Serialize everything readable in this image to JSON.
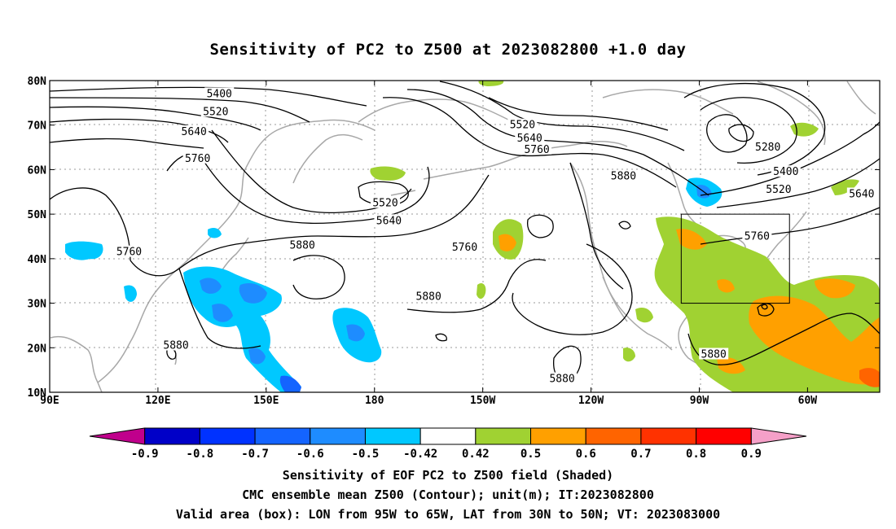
{
  "title": "Sensitivity of PC2 to Z500 at 2023082800 +1.0 day",
  "lon_ticks": [
    {
      "lon": 90,
      "label": "90E"
    },
    {
      "lon": 120,
      "label": "120E"
    },
    {
      "lon": 150,
      "label": "150E"
    },
    {
      "lon": 180,
      "label": "180"
    },
    {
      "lon": 210,
      "label": "150W"
    },
    {
      "lon": 240,
      "label": "120W"
    },
    {
      "lon": 270,
      "label": "90W"
    },
    {
      "lon": 300,
      "label": "60W"
    }
  ],
  "lat_ticks": [
    {
      "lat": 10,
      "label": "10N"
    },
    {
      "lat": 20,
      "label": "20N"
    },
    {
      "lat": 30,
      "label": "30N"
    },
    {
      "lat": 40,
      "label": "40N"
    },
    {
      "lat": 50,
      "label": "50N"
    },
    {
      "lat": 60,
      "label": "60N"
    },
    {
      "lat": 70,
      "label": "70N"
    },
    {
      "lat": 80,
      "label": "80N"
    }
  ],
  "contour_labels": [
    {
      "text": "5400",
      "lon": 137,
      "lat": 77
    },
    {
      "text": "5520",
      "lon": 136,
      "lat": 73
    },
    {
      "text": "5640",
      "lon": 130,
      "lat": 68.5
    },
    {
      "text": "5760",
      "lon": 131,
      "lat": 62.5
    },
    {
      "text": "5760",
      "lon": 112,
      "lat": 41.5
    },
    {
      "text": "5880",
      "lon": 160,
      "lat": 43
    },
    {
      "text": "5880",
      "lon": 125,
      "lat": 20.5
    },
    {
      "text": "5520",
      "lon": 183,
      "lat": 52.5
    },
    {
      "text": "5640",
      "lon": 184,
      "lat": 48.5
    },
    {
      "text": "5760",
      "lon": 205,
      "lat": 42.5
    },
    {
      "text": "5880",
      "lon": 195,
      "lat": 31.5
    },
    {
      "text": "5520",
      "lon": 221,
      "lat": 70
    },
    {
      "text": "5640",
      "lon": 223,
      "lat": 67
    },
    {
      "text": "5760",
      "lon": 225,
      "lat": 64.5
    },
    {
      "text": "5880",
      "lon": 249,
      "lat": 58.5
    },
    {
      "text": "5880",
      "lon": 232,
      "lat": 13
    },
    {
      "text": "5280",
      "lon": 289,
      "lat": 65
    },
    {
      "text": "5400",
      "lon": 294,
      "lat": 59.5
    },
    {
      "text": "5520",
      "lon": 292,
      "lat": 55.5
    },
    {
      "text": "5640",
      "lon": 315,
      "lat": 54.5
    },
    {
      "text": "5760",
      "lon": 286,
      "lat": 45
    },
    {
      "text": "5880",
      "lon": 274,
      "lat": 18.5
    }
  ],
  "valid_box": {
    "lon_w": 265,
    "lon_e": 295,
    "lat_s": 30,
    "lat_n": 50
  },
  "colorbar": {
    "colors": [
      "#c0008c",
      "#0000c8",
      "#0032ff",
      "#1464ff",
      "#1e8cff",
      "#00c8ff",
      "#ffffff",
      "#a0d232",
      "#ffa000",
      "#ff6400",
      "#ff3200",
      "#ff0000",
      "#f5a0c8"
    ],
    "labels": [
      "-0.9",
      "-0.8",
      "-0.7",
      "-0.6",
      "-0.5",
      "-0.42",
      "0.42",
      "0.5",
      "0.6",
      "0.7",
      "0.8",
      "0.9"
    ]
  },
  "captions": {
    "line1": "Sensitivity of EOF PC2 to Z500 field (Shaded)",
    "line2": "CMC ensemble mean Z500 (Contour); unit(m); IT:2023082800",
    "line3": "Valid area (box): LON from 95W to 65W, LAT from 30N to 50N; VT: 2023083000"
  }
}
